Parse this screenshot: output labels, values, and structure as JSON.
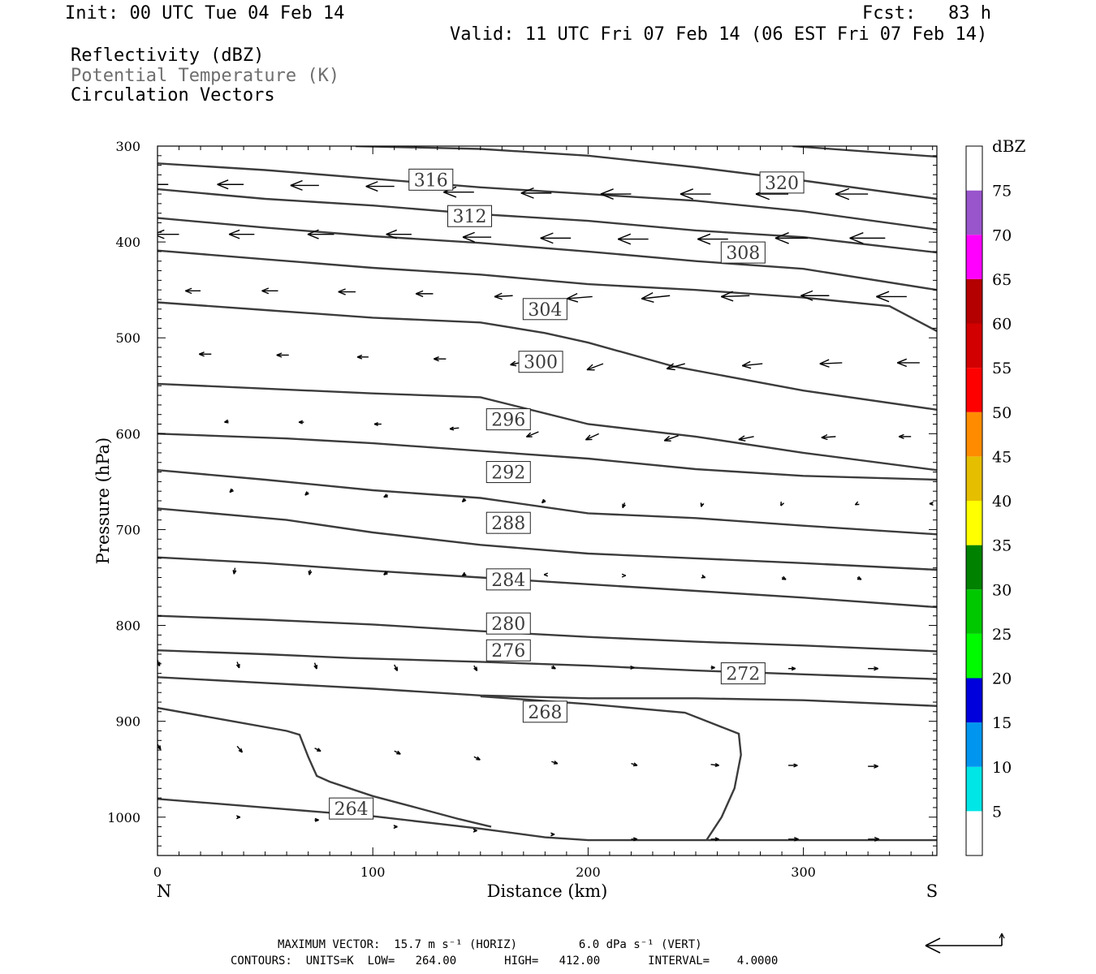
{
  "header": {
    "init": "Init: 00 UTC Tue 04 Feb 14",
    "fcst": "Fcst:   83 h",
    "valid": "Valid: 11 UTC Fri 07 Feb 14 (06 EST Fri 07 Feb 14)",
    "fields": [
      "Reflectivity (dBZ)",
      "Potential Temperature (K)",
      "Circulation Vectors"
    ]
  },
  "footer": {
    "max_vector": "MAXIMUM VECTOR:  15.7 m s⁻¹ (HORIZ)         6.0 dPa s⁻¹ (VERT)",
    "contours": "CONTOURS:  UNITS=K  LOW=   264.00       HIGH=   412.00       INTERVAL=    4.0000"
  },
  "colors": {
    "contour": "#3c3c3c",
    "arrow": "#000000",
    "colorbar": [
      "#ffffff",
      "#00e6e6",
      "#0096f0",
      "#0000dc",
      "#00fa00",
      "#00c800",
      "#008200",
      "#ffff00",
      "#e6be00",
      "#ff8c00",
      "#ff0000",
      "#d20000",
      "#b40000",
      "#ff00ff",
      "#9955cc",
      "#ffffff"
    ]
  },
  "chart_data": {
    "type": "line",
    "title": "Reflectivity (dBZ) / Potential Temperature (K) / Circulation Vectors",
    "xlabel": "Distance (km)",
    "ylabel": "Pressure (hPa)",
    "xlim": [
      0,
      362
    ],
    "ylim": [
      1040,
      300
    ],
    "y_scale": "linear, reversed",
    "xticks": [
      0,
      100,
      200,
      300
    ],
    "yticks": [
      300,
      400,
      500,
      600,
      700,
      800,
      900,
      1000
    ],
    "x_end_labels": {
      "left": "N",
      "right": "S"
    },
    "colorbar": {
      "label": "dBZ",
      "ticks": [
        5,
        10,
        15,
        20,
        25,
        30,
        35,
        40,
        45,
        50,
        55,
        60,
        65,
        70,
        75
      ]
    },
    "theta_contours": [
      {
        "value": 264,
        "label": "264",
        "label_at": [
          90,
          991
        ],
        "points": [
          [
            0,
            981
          ],
          [
            50,
            990
          ],
          [
            100,
            999
          ],
          [
            150,
            1012
          ],
          [
            180,
            1021
          ],
          [
            200,
            1024
          ],
          [
            250,
            1024
          ],
          [
            362,
            1024
          ]
        ]
      },
      {
        "value": 268,
        "label": "268",
        "label_at": [
          180,
          890
        ],
        "points": [
          [
            0,
            886
          ],
          [
            30,
            898
          ],
          [
            60,
            910
          ],
          [
            66,
            914
          ],
          [
            70,
            937
          ],
          [
            72,
            947
          ],
          [
            74,
            957
          ],
          [
            80,
            963
          ],
          [
            100,
            978
          ],
          [
            120,
            990
          ],
          [
            140,
            1002
          ],
          [
            155,
            1010
          ]
        ]
      },
      {
        "value": 268,
        "label": "",
        "label_at": null,
        "points": [
          [
            150,
            874
          ],
          [
            200,
            882
          ],
          [
            245,
            891
          ],
          [
            270,
            913
          ],
          [
            271,
            935
          ],
          [
            268,
            970
          ],
          [
            262,
            1000
          ],
          [
            255,
            1024
          ]
        ]
      },
      {
        "value": 272,
        "label": "272",
        "label_at": [
          272,
          850
        ],
        "points": [
          [
            0,
            854
          ],
          [
            50,
            860
          ],
          [
            100,
            866
          ],
          [
            150,
            873
          ],
          [
            200,
            876
          ],
          [
            250,
            876
          ],
          [
            300,
            878
          ],
          [
            362,
            884
          ]
        ]
      },
      {
        "value": 276,
        "label": "276",
        "label_at": [
          163,
          826
        ],
        "points": [
          [
            0,
            826
          ],
          [
            50,
            830
          ],
          [
            90,
            834
          ],
          [
            150,
            838
          ],
          [
            200,
            842
          ],
          [
            250,
            847
          ],
          [
            300,
            851
          ],
          [
            362,
            856
          ]
        ]
      },
      {
        "value": 280,
        "label": "280",
        "label_at": [
          163,
          798
        ],
        "points": [
          [
            0,
            790
          ],
          [
            50,
            794
          ],
          [
            100,
            799
          ],
          [
            150,
            806
          ],
          [
            200,
            812
          ],
          [
            250,
            817
          ],
          [
            300,
            821
          ],
          [
            362,
            827
          ]
        ]
      },
      {
        "value": 284,
        "label": "284",
        "label_at": [
          163,
          752
        ],
        "points": [
          [
            0,
            729
          ],
          [
            50,
            735
          ],
          [
            100,
            743
          ],
          [
            150,
            750
          ],
          [
            200,
            757
          ],
          [
            250,
            764
          ],
          [
            300,
            771
          ],
          [
            362,
            781
          ]
        ]
      },
      {
        "value": 288,
        "label": "288",
        "label_at": [
          163,
          693
        ],
        "points": [
          [
            0,
            678
          ],
          [
            60,
            690
          ],
          [
            100,
            703
          ],
          [
            150,
            716
          ],
          [
            200,
            725
          ],
          [
            250,
            730
          ],
          [
            300,
            735
          ],
          [
            362,
            742
          ]
        ]
      },
      {
        "value": 292,
        "label": "292",
        "label_at": [
          163,
          640
        ],
        "points": [
          [
            0,
            638
          ],
          [
            50,
            648
          ],
          [
            100,
            659
          ],
          [
            150,
            667
          ],
          [
            200,
            683
          ],
          [
            250,
            688
          ],
          [
            300,
            696
          ],
          [
            362,
            705
          ]
        ]
      },
      {
        "value": 296,
        "label": "296",
        "label_at": [
          163,
          585
        ],
        "points": [
          [
            0,
            600
          ],
          [
            60,
            605
          ],
          [
            100,
            610
          ],
          [
            150,
            618
          ],
          [
            200,
            626
          ],
          [
            250,
            637
          ],
          [
            300,
            644
          ],
          [
            362,
            648
          ]
        ]
      },
      {
        "value": 300,
        "label": "300",
        "label_at": [
          178,
          525
        ],
        "points": [
          [
            0,
            548
          ],
          [
            50,
            553
          ],
          [
            100,
            558
          ],
          [
            150,
            562
          ],
          [
            200,
            590
          ],
          [
            250,
            603
          ],
          [
            300,
            620
          ],
          [
            362,
            638
          ]
        ]
      },
      {
        "value": 304,
        "label": "304",
        "label_at": [
          180,
          470
        ],
        "points": [
          [
            0,
            463
          ],
          [
            50,
            471
          ],
          [
            100,
            479
          ],
          [
            150,
            484
          ],
          [
            180,
            495
          ],
          [
            200,
            505
          ],
          [
            240,
            530
          ],
          [
            300,
            555
          ],
          [
            362,
            575
          ]
        ]
      },
      {
        "value": 308,
        "label": "308",
        "label_at": [
          272,
          411
        ],
        "points": [
          [
            0,
            409
          ],
          [
            50,
            418
          ],
          [
            100,
            427
          ],
          [
            150,
            434
          ],
          [
            200,
            444
          ],
          [
            250,
            450
          ],
          [
            300,
            458
          ],
          [
            340,
            467
          ],
          [
            362,
            493
          ]
        ]
      },
      {
        "value": 312,
        "label": "312",
        "label_at": [
          145,
          373
        ],
        "points": [
          [
            0,
            375
          ],
          [
            50,
            385
          ],
          [
            100,
            394
          ],
          [
            150,
            401
          ],
          [
            200,
            410
          ],
          [
            250,
            420
          ],
          [
            300,
            428
          ],
          [
            362,
            450
          ]
        ]
      },
      {
        "value": 316,
        "label": "316",
        "label_at": [
          127,
          335
        ],
        "points": [
          [
            0,
            345
          ],
          [
            50,
            355
          ],
          [
            100,
            362
          ],
          [
            150,
            371
          ],
          [
            200,
            378
          ],
          [
            250,
            388
          ],
          [
            300,
            395
          ],
          [
            362,
            411
          ]
        ]
      },
      {
        "value": 320,
        "label": "320",
        "label_at": [
          290,
          338
        ],
        "points": [
          [
            0,
            318
          ],
          [
            50,
            325
          ],
          [
            100,
            334
          ],
          [
            150,
            343
          ],
          [
            200,
            350
          ],
          [
            250,
            357
          ],
          [
            300,
            368
          ],
          [
            362,
            387
          ]
        ]
      },
      {
        "value": 324,
        "label": "",
        "label_at": null,
        "points": [
          [
            92,
            300
          ],
          [
            150,
            303
          ],
          [
            200,
            310
          ],
          [
            250,
            322
          ],
          [
            300,
            336
          ],
          [
            362,
            355
          ]
        ]
      },
      {
        "value": 328,
        "label": "",
        "label_at": null,
        "points": [
          [
            295,
            300
          ],
          [
            362,
            311
          ]
        ]
      }
    ],
    "circulation_vectors_comment": "",
    "circulation_vectors": [
      [
        5,
        340,
        -25,
        0
      ],
      [
        40,
        340,
        -26,
        0
      ],
      [
        75,
        341,
        -28,
        0
      ],
      [
        110,
        342,
        -28,
        0
      ],
      [
        147,
        348,
        -30,
        0
      ],
      [
        183,
        349,
        -30,
        0
      ],
      [
        220,
        350,
        -30,
        0
      ],
      [
        257,
        350,
        -30,
        0
      ],
      [
        293,
        350,
        -32,
        0
      ],
      [
        330,
        350,
        -32,
        0
      ],
      [
        10,
        392,
        -25,
        0
      ],
      [
        45,
        392,
        -25,
        0
      ],
      [
        82,
        392,
        -26,
        0
      ],
      [
        118,
        392,
        -25,
        0
      ],
      [
        155,
        395,
        -28,
        0
      ],
      [
        192,
        396,
        -30,
        0
      ],
      [
        228,
        397,
        -30,
        0
      ],
      [
        265,
        397,
        -30,
        0
      ],
      [
        302,
        396,
        -32,
        0
      ],
      [
        338,
        396,
        -35,
        0
      ],
      [
        20,
        451,
        -15,
        0
      ],
      [
        56,
        451,
        -16,
        0
      ],
      [
        92,
        452,
        -17,
        0
      ],
      [
        128,
        454,
        -17,
        0
      ],
      [
        165,
        456,
        -18,
        1
      ],
      [
        202,
        457,
        -25,
        2
      ],
      [
        238,
        456,
        -28,
        3
      ],
      [
        275,
        456,
        -28,
        1
      ],
      [
        312,
        456,
        -28,
        0
      ],
      [
        348,
        457,
        -30,
        0
      ],
      [
        25,
        517,
        -12,
        0
      ],
      [
        61,
        518,
        -12,
        0
      ],
      [
        98,
        520,
        -11,
        0
      ],
      [
        134,
        522,
        -12,
        0
      ],
      [
        170,
        525,
        -13,
        3
      ],
      [
        207,
        527,
        -16,
        6
      ],
      [
        245,
        527,
        -18,
        5
      ],
      [
        281,
        527,
        -20,
        2
      ],
      [
        318,
        526,
        -22,
        1
      ],
      [
        354,
        526,
        -22,
        0
      ],
      [
        33,
        587,
        -4,
        1
      ],
      [
        68,
        588,
        -5,
        0
      ],
      [
        104,
        590,
        -7,
        0
      ],
      [
        140,
        594,
        -9,
        1
      ],
      [
        177,
        598,
        -12,
        5
      ],
      [
        205,
        600,
        -13,
        6
      ],
      [
        242,
        602,
        -14,
        5
      ],
      [
        277,
        603,
        -15,
        3
      ],
      [
        315,
        603,
        -14,
        1
      ],
      [
        350,
        603,
        -12,
        0
      ],
      [
        35,
        658,
        -3,
        3
      ],
      [
        70,
        661,
        -3,
        3
      ],
      [
        107,
        664,
        -4,
        2
      ],
      [
        143,
        668,
        -3,
        3
      ],
      [
        180,
        669,
        -3,
        3
      ],
      [
        217,
        672,
        -2,
        5
      ],
      [
        253,
        673,
        -1,
        3
      ],
      [
        290,
        673,
        -1,
        2
      ],
      [
        325,
        673,
        -2,
        1
      ],
      [
        360,
        673,
        -3,
        0
      ],
      [
        36,
        740,
        -1,
        6
      ],
      [
        71,
        742,
        -1,
        5
      ],
      [
        107,
        744,
        -4,
        3
      ],
      [
        143,
        746,
        -3,
        2
      ],
      [
        180,
        747,
        -1,
        0
      ],
      [
        217,
        748,
        1,
        0
      ],
      [
        253,
        749,
        3,
        1
      ],
      [
        290,
        750,
        4,
        2
      ],
      [
        325,
        750,
        4,
        2
      ],
      [
        0,
        836,
        2,
        6
      ],
      [
        37,
        838,
        2,
        6
      ],
      [
        73,
        839,
        2,
        6
      ],
      [
        110,
        841,
        3,
        6
      ],
      [
        147,
        842,
        3,
        5
      ],
      [
        183,
        843,
        4,
        2
      ],
      [
        220,
        844,
        3,
        0
      ],
      [
        257,
        844,
        4,
        0
      ],
      [
        293,
        845,
        7,
        0
      ],
      [
        330,
        845,
        10,
        0
      ],
      [
        0,
        924,
        3,
        5
      ],
      [
        37,
        926,
        5,
        6
      ],
      [
        73,
        928,
        6,
        3
      ],
      [
        110,
        931,
        6,
        3
      ],
      [
        147,
        937,
        6,
        3
      ],
      [
        183,
        942,
        6,
        2
      ],
      [
        220,
        944,
        6,
        2
      ],
      [
        257,
        945,
        8,
        1
      ],
      [
        293,
        946,
        9,
        0
      ],
      [
        330,
        947,
        10,
        0
      ],
      [
        37,
        1000,
        3,
        0
      ],
      [
        73,
        1003,
        4,
        0
      ],
      [
        110,
        1010,
        3,
        0
      ],
      [
        147,
        1014,
        3,
        0
      ],
      [
        183,
        1018,
        3,
        0
      ],
      [
        220,
        1023,
        6,
        0
      ],
      [
        257,
        1023,
        8,
        0
      ],
      [
        293,
        1023,
        10,
        0
      ],
      [
        330,
        1023,
        11,
        0
      ]
    ]
  }
}
